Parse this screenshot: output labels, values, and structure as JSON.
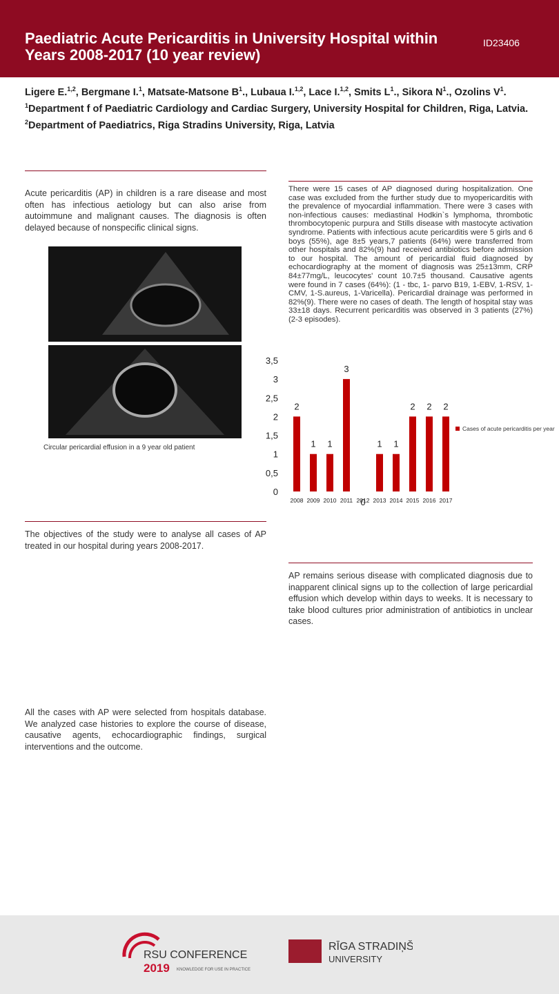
{
  "header": {
    "title": "Paediatric Acute Pericarditis in University Hospital within Years 2008-2017 (10 year review)",
    "id": "ID23406"
  },
  "authors": [
    {
      "name": "Ligere E.",
      "sup": "1,2",
      "end": ","
    },
    {
      "name": "Bergmane I.",
      "sup": "1",
      "end": ","
    },
    {
      "name": "Matsate-Matsone B",
      "sup": "1",
      "end": "., "
    },
    {
      "name": "Lubaua I.",
      "sup": "1,2",
      "end": ","
    },
    {
      "name": "Lace I.",
      "sup": "1,2",
      "end": ","
    },
    {
      "name": "Smits L",
      "sup": "1",
      "end": "., "
    },
    {
      "name": "Sikora N",
      "sup": "1",
      "end": "., "
    },
    {
      "name": "Ozolins V",
      "sup": "1",
      "end": "."
    }
  ],
  "affiliations": [
    {
      "sup": "1",
      "text": "Department f of Paediatric Cardiology and Cardiac Surgery, University Hospital for Children, Riga, Latvia."
    },
    {
      "sup": "2",
      "text": "Department of Paediatrics, Riga Stradins University, Riga, Latvia"
    }
  ],
  "introduction": "Acute pericarditis (AP) in children is a rare disease and most often has infectious aetiology but can also arise from autoimmune and malignant causes. The diagnosis is often delayed because of nonspecific clinical signs.",
  "image_caption": "Circular pericardial effusion in a 9 year old patient",
  "results": "There were 15 cases of AP diagnosed during hospitalization. One case was excluded from the further study due to myopericarditis with the prevalence of myocardial inflammation. There were 3 cases with non-infectious causes: mediastinal Hodkin`s lymphoma, thrombotic thrombocytopenic purpura and Stills disease with mastocyte activation syndrome. Patients with infectious acute pericarditis were 5 girls and 6 boys (55%), age 8±5 years,7 patients (64%) were transferred from other hospitals and 82%(9) had received antibiotics before admission to our hospital. The amount of pericardial fluid diagnosed by echocardiography at the moment of diagnosis was 25±13mm, CRP 84±77mg/L, leucocytes' count 10.7±5 thousand. Causative agents were found in 7 cases (64%): (1 - tbc, 1- parvo B19, 1-EBV, 1-RSV, 1-CMV, 1-S.aureus, 1-Varicella). Pericardial drainage was performed in 82%(9). There were no cases of death. The length of hospital stay was 33±18 days. Recurrent pericarditis was observed in 3 patients (27%) (2-3 episodes).",
  "objectives": "The objectives of the study were to analyse all cases of AP treated in our hospital during years 2008-2017.",
  "conclusion": "AP remains serious disease with complicated diagnosis due to inapparent clinical signs up to the collection of large pericardial effusion which develop within days to weeks. It is necessary to take blood cultures prior administration of antibiotics in unclear cases.",
  "methods": "All the cases with AP were selected from hospitals database. We analyzed case histories to explore the course of disease, causative agents, echocardiographic findings, surgical interventions and the outcome.",
  "footer": {
    "conference": "RSU CONFERENCE",
    "year": "2019",
    "tagline": "KNOWLEDGE FOR USE IN PRACTICE",
    "university_1": "RĪGA STRADIŅŠ",
    "university_2": "UNIVERSITY"
  },
  "chart_data": {
    "type": "bar",
    "categories": [
      "2008",
      "2009",
      "2010",
      "2011",
      "2012",
      "2013",
      "2014",
      "2015",
      "2016",
      "2017"
    ],
    "series": [
      {
        "name": "Cases of acute pericarditis per year",
        "color": "#c00000",
        "values": [
          2,
          1,
          1,
          3,
          0,
          1,
          1,
          2,
          2,
          2
        ]
      }
    ],
    "ylim": [
      0,
      3.5
    ],
    "yticks": [
      0,
      {
        "value": 0.5,
        "label": "0,5"
      },
      1,
      {
        "value": 1.5,
        "label": "1,5"
      },
      2,
      {
        "value": 2.5,
        "label": "2,5"
      },
      3,
      {
        "value": 3.5,
        "label": "3,5"
      }
    ],
    "legend": "right",
    "data_labels": true
  }
}
